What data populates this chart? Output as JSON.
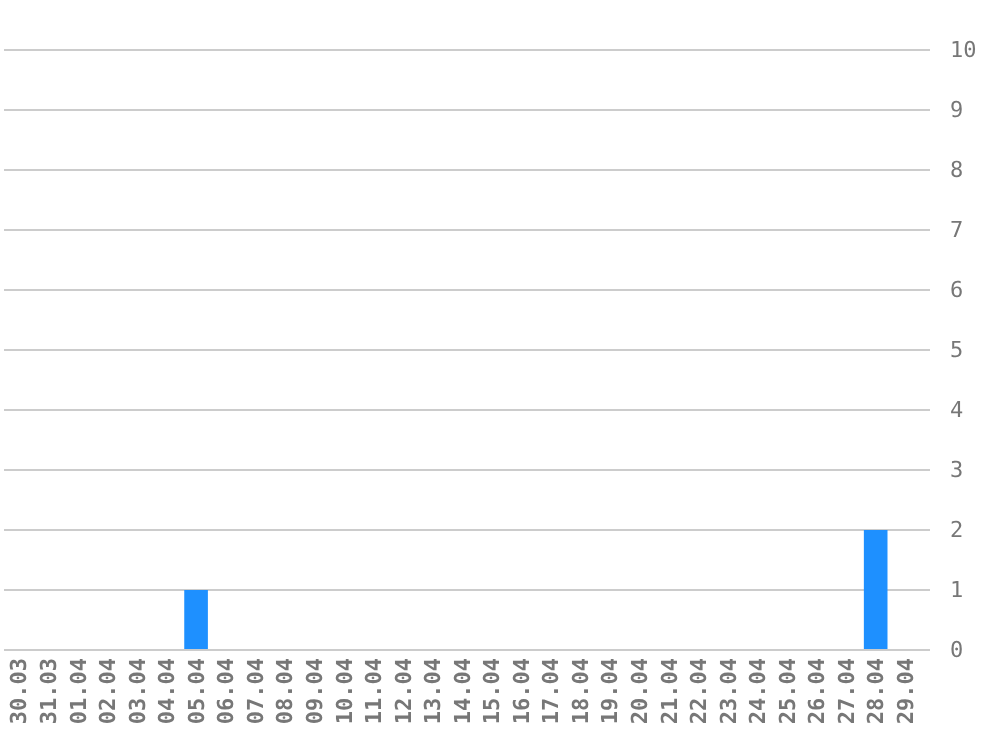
{
  "chart_data": {
    "type": "bar",
    "categories": [
      "30.03",
      "31.03",
      "01.04",
      "02.04",
      "03.04",
      "04.04",
      "05.04",
      "06.04",
      "07.04",
      "08.04",
      "09.04",
      "10.04",
      "11.04",
      "12.04",
      "13.04",
      "14.04",
      "15.04",
      "16.04",
      "17.04",
      "18.04",
      "19.04",
      "20.04",
      "21.04",
      "22.04",
      "23.04",
      "24.04",
      "25.04",
      "26.04",
      "27.04",
      "28.04",
      "29.04"
    ],
    "values": [
      0,
      0,
      0,
      0,
      0,
      0,
      1,
      0,
      0,
      0,
      0,
      0,
      0,
      0,
      0,
      0,
      0,
      0,
      0,
      0,
      0,
      0,
      0,
      0,
      0,
      0,
      0,
      0,
      0,
      2,
      0
    ],
    "color": "#1e90ff",
    "ylim": [
      0,
      10
    ],
    "yticks": [
      0,
      1,
      2,
      3,
      4,
      5,
      6,
      7,
      8,
      9,
      10
    ],
    "grid": "y"
  }
}
